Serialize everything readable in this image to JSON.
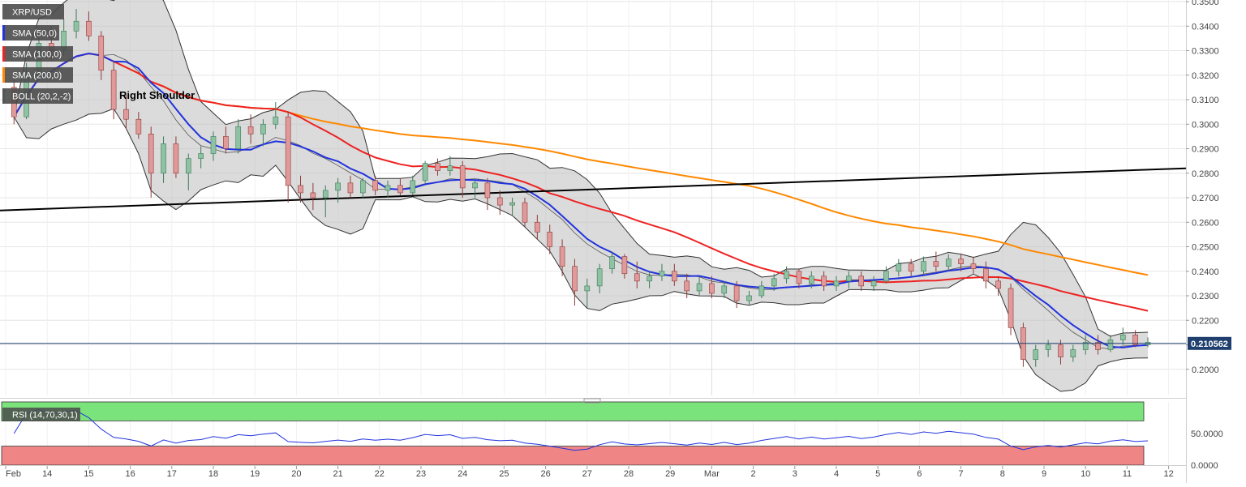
{
  "chart_data": {
    "type": "candlestick",
    "symbol": "XRP/USD",
    "indicators": [
      "SMA (50,0)",
      "SMA (100,0)",
      "SMA (200,0)",
      "BOLL (20,2,-2)"
    ],
    "indicator_colors": [
      "#2233dd",
      "#ee2222",
      "#ff8800",
      "#555555"
    ],
    "annotation": "Right Shoulder",
    "ylim": [
      0.19,
      0.35
    ],
    "y_ticks": [
      "0.3500",
      "0.3400",
      "0.3300",
      "0.3200",
      "0.3100",
      "0.3000",
      "0.2900",
      "0.2800",
      "0.2700",
      "0.2600",
      "0.2500",
      "0.2400",
      "0.2300",
      "0.2200",
      "0.2100",
      "0.2000"
    ],
    "y_tick_values": [
      0.35,
      0.34,
      0.33,
      0.32,
      0.31,
      0.3,
      0.29,
      0.28,
      0.27,
      0.26,
      0.25,
      0.24,
      0.23,
      0.22,
      0.21,
      0.2
    ],
    "x_labels": [
      "Feb",
      "14",
      "15",
      "16",
      "17",
      "18",
      "19",
      "20",
      "21",
      "22",
      "23",
      "24",
      "25",
      "26",
      "27",
      "28",
      "29",
      "Mar",
      "2",
      "3",
      "4",
      "5",
      "6",
      "7",
      "8",
      "9",
      "10",
      "11",
      "12"
    ],
    "x_label_days": [
      13,
      14,
      15,
      16,
      17,
      18,
      19,
      20,
      21,
      22,
      23,
      24,
      25,
      26,
      27,
      28,
      29,
      30,
      31,
      32,
      33,
      34,
      35,
      36,
      37,
      38,
      39,
      40,
      41
    ],
    "last_price": 0.210562,
    "last_price_label": "0.210562",
    "candles": [
      [
        13.2,
        0.315,
        0.318,
        0.3,
        0.303
      ],
      [
        13.5,
        0.303,
        0.325,
        0.302,
        0.32
      ],
      [
        13.8,
        0.32,
        0.337,
        0.318,
        0.333
      ],
      [
        14.1,
        0.333,
        0.34,
        0.326,
        0.33
      ],
      [
        14.4,
        0.33,
        0.343,
        0.328,
        0.338
      ],
      [
        14.7,
        0.338,
        0.347,
        0.335,
        0.342
      ],
      [
        15.0,
        0.342,
        0.346,
        0.334,
        0.336
      ],
      [
        15.3,
        0.336,
        0.338,
        0.318,
        0.322
      ],
      [
        15.6,
        0.322,
        0.326,
        0.302,
        0.306
      ],
      [
        15.9,
        0.306,
        0.312,
        0.298,
        0.302
      ],
      [
        16.2,
        0.302,
        0.305,
        0.294,
        0.296
      ],
      [
        16.5,
        0.296,
        0.299,
        0.27,
        0.28
      ],
      [
        16.8,
        0.28,
        0.295,
        0.276,
        0.292
      ],
      [
        17.1,
        0.292,
        0.295,
        0.278,
        0.28
      ],
      [
        17.4,
        0.28,
        0.288,
        0.273,
        0.286
      ],
      [
        17.7,
        0.286,
        0.291,
        0.282,
        0.288
      ],
      [
        18.0,
        0.288,
        0.297,
        0.285,
        0.295
      ],
      [
        18.3,
        0.295,
        0.299,
        0.288,
        0.29
      ],
      [
        18.6,
        0.29,
        0.302,
        0.288,
        0.299
      ],
      [
        18.9,
        0.299,
        0.304,
        0.292,
        0.296
      ],
      [
        19.2,
        0.296,
        0.302,
        0.291,
        0.3
      ],
      [
        19.5,
        0.3,
        0.309,
        0.298,
        0.303
      ],
      [
        19.8,
        0.303,
        0.305,
        0.268,
        0.275
      ],
      [
        20.1,
        0.275,
        0.279,
        0.268,
        0.272
      ],
      [
        20.4,
        0.272,
        0.276,
        0.265,
        0.27
      ],
      [
        20.7,
        0.27,
        0.275,
        0.262,
        0.273
      ],
      [
        21.0,
        0.273,
        0.278,
        0.268,
        0.276
      ],
      [
        21.3,
        0.276,
        0.279,
        0.27,
        0.272
      ],
      [
        21.6,
        0.272,
        0.278,
        0.27,
        0.277
      ],
      [
        21.9,
        0.277,
        0.279,
        0.271,
        0.273
      ],
      [
        22.2,
        0.273,
        0.277,
        0.27,
        0.275
      ],
      [
        22.5,
        0.275,
        0.278,
        0.271,
        0.272
      ],
      [
        22.8,
        0.272,
        0.279,
        0.271,
        0.277
      ],
      [
        23.1,
        0.277,
        0.285,
        0.276,
        0.284
      ],
      [
        23.4,
        0.284,
        0.286,
        0.279,
        0.281
      ],
      [
        23.7,
        0.281,
        0.287,
        0.279,
        0.283
      ],
      [
        24.0,
        0.283,
        0.285,
        0.27,
        0.274
      ],
      [
        24.3,
        0.274,
        0.277,
        0.27,
        0.276
      ],
      [
        24.6,
        0.276,
        0.278,
        0.265,
        0.27
      ],
      [
        24.9,
        0.27,
        0.273,
        0.263,
        0.267
      ],
      [
        25.2,
        0.267,
        0.27,
        0.263,
        0.268
      ],
      [
        25.5,
        0.268,
        0.27,
        0.258,
        0.26
      ],
      [
        25.8,
        0.26,
        0.263,
        0.253,
        0.256
      ],
      [
        26.1,
        0.256,
        0.259,
        0.247,
        0.25
      ],
      [
        26.4,
        0.25,
        0.253,
        0.238,
        0.242
      ],
      [
        26.7,
        0.242,
        0.245,
        0.226,
        0.232
      ],
      [
        27.0,
        0.232,
        0.237,
        0.225,
        0.234
      ],
      [
        27.3,
        0.234,
        0.243,
        0.231,
        0.241
      ],
      [
        27.6,
        0.241,
        0.248,
        0.239,
        0.246
      ],
      [
        27.9,
        0.246,
        0.247,
        0.237,
        0.239
      ],
      [
        28.2,
        0.239,
        0.244,
        0.233,
        0.236
      ],
      [
        28.5,
        0.236,
        0.24,
        0.233,
        0.238
      ],
      [
        28.8,
        0.238,
        0.243,
        0.236,
        0.24
      ],
      [
        29.1,
        0.24,
        0.243,
        0.234,
        0.236
      ],
      [
        29.4,
        0.236,
        0.239,
        0.229,
        0.232
      ],
      [
        29.7,
        0.232,
        0.238,
        0.23,
        0.235
      ],
      [
        30.0,
        0.235,
        0.238,
        0.229,
        0.231
      ],
      [
        30.3,
        0.231,
        0.236,
        0.229,
        0.234
      ],
      [
        30.6,
        0.234,
        0.236,
        0.225,
        0.228
      ],
      [
        30.9,
        0.228,
        0.232,
        0.226,
        0.23
      ],
      [
        31.2,
        0.23,
        0.236,
        0.229,
        0.234
      ],
      [
        31.5,
        0.234,
        0.239,
        0.232,
        0.237
      ],
      [
        31.8,
        0.237,
        0.242,
        0.235,
        0.24
      ],
      [
        32.1,
        0.24,
        0.241,
        0.233,
        0.235
      ],
      [
        32.4,
        0.235,
        0.24,
        0.233,
        0.238
      ],
      [
        32.7,
        0.238,
        0.24,
        0.232,
        0.234
      ],
      [
        33.0,
        0.234,
        0.238,
        0.232,
        0.236
      ],
      [
        33.3,
        0.236,
        0.24,
        0.233,
        0.238
      ],
      [
        33.6,
        0.238,
        0.24,
        0.232,
        0.234
      ],
      [
        33.9,
        0.234,
        0.238,
        0.232,
        0.236
      ],
      [
        34.2,
        0.236,
        0.242,
        0.235,
        0.24
      ],
      [
        34.5,
        0.24,
        0.245,
        0.238,
        0.243
      ],
      [
        34.8,
        0.243,
        0.245,
        0.238,
        0.24
      ],
      [
        35.1,
        0.24,
        0.246,
        0.239,
        0.244
      ],
      [
        35.4,
        0.244,
        0.248,
        0.24,
        0.242
      ],
      [
        35.7,
        0.242,
        0.247,
        0.24,
        0.245
      ],
      [
        36.0,
        0.245,
        0.247,
        0.24,
        0.243
      ],
      [
        36.3,
        0.243,
        0.246,
        0.239,
        0.241
      ],
      [
        36.6,
        0.241,
        0.244,
        0.233,
        0.236
      ],
      [
        36.9,
        0.236,
        0.238,
        0.23,
        0.233
      ],
      [
        37.2,
        0.233,
        0.235,
        0.214,
        0.217
      ],
      [
        37.5,
        0.217,
        0.219,
        0.201,
        0.204
      ],
      [
        37.8,
        0.204,
        0.21,
        0.201,
        0.208
      ],
      [
        38.1,
        0.208,
        0.212,
        0.205,
        0.21
      ],
      [
        38.4,
        0.21,
        0.212,
        0.202,
        0.205
      ],
      [
        38.7,
        0.205,
        0.21,
        0.203,
        0.208
      ],
      [
        39.0,
        0.208,
        0.214,
        0.206,
        0.211
      ],
      [
        39.3,
        0.211,
        0.214,
        0.206,
        0.208
      ],
      [
        39.6,
        0.208,
        0.214,
        0.207,
        0.212
      ],
      [
        39.9,
        0.212,
        0.217,
        0.21,
        0.214
      ],
      [
        40.2,
        0.214,
        0.216,
        0.209,
        0.21
      ],
      [
        40.5,
        0.21,
        0.213,
        0.209,
        0.211
      ]
    ]
  }
}
